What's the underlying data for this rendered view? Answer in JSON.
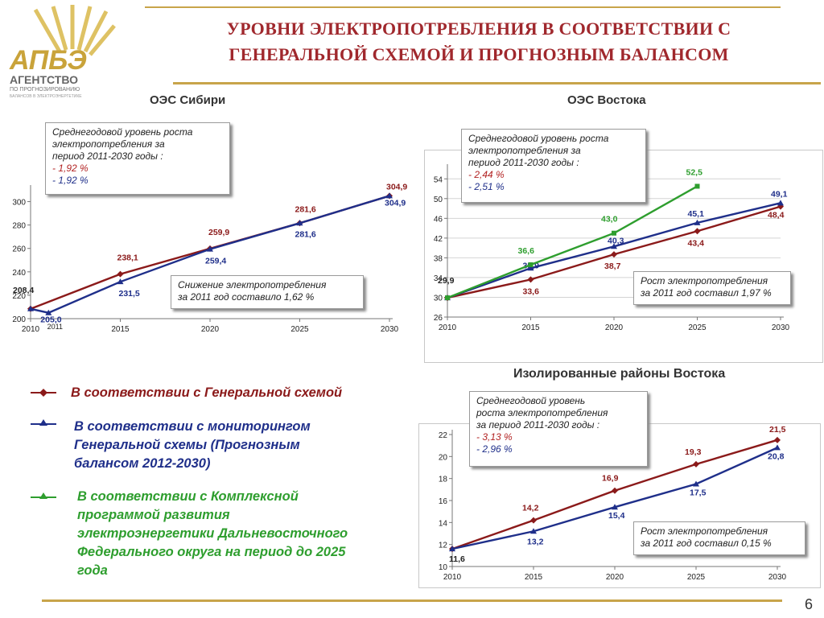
{
  "slide": {
    "title_line1": "УРОВНИ ЭЛЕКТРОПОТРЕБЛЕНИЯ В СООТВЕТСТВИИ С",
    "title_line2": "ГЕНЕРАЛЬНОЙ СХЕМОЙ И ПРОГНОЗНЫМ БАЛАНСОМ",
    "page_number": "6",
    "accent_color": "#c8a44a",
    "title_color": "#a0282d"
  },
  "logo": {
    "name": "АПБЭ",
    "line1": "АГЕНТСТВО",
    "line2": "ПО ПРОГНОЗИРОВАНИЮ",
    "line3": "БАЛАНСОВ В ЭЛЕКТРОЭНЕРГЕТИКЕ"
  },
  "sections": {
    "siberia": "ОЭС Сибири",
    "east": "ОЭС Востока",
    "isolated": "Изолированные районы Востока"
  },
  "annotations": {
    "siberia_growth": {
      "line1": "Среднегодовой уровень роста",
      "line2": "электропотребления за",
      "line3": "период  2011-2030  годы :",
      "red": "- 1,92 %",
      "blue": "- 1,92 %"
    },
    "siberia_drop": {
      "line1": "Снижение электропотребления",
      "line2": "за 2011  год составило 1,62 %"
    },
    "east_growth": {
      "line1": "Среднегодовой уровень роста",
      "line2": "электропотребления за",
      "line3": "период  2011-2030  годы :",
      "red": "- 2,44 %",
      "blue": "- 2,51 %"
    },
    "east_rise": {
      "line1": "Рост электропотребления",
      "line2": "за 2011  год составил  1,97 %"
    },
    "iso_growth": {
      "line1": "Среднегодовой уровень",
      "line2": "роста электропотребления",
      "line3": "за период  2011-2030  годы :",
      "red": "- 3,13 %",
      "blue": "- 2,96 %"
    },
    "iso_rise": {
      "line1": "Рост электропотребления",
      "line2": "за 2011  год составил 0,15 %"
    }
  },
  "legend": {
    "general_scheme": "В соответствии с Генеральной схемой",
    "monitoring_line1": "В соответствии с мониторингом",
    "monitoring_line2": "Генеральной схемы (Прогнозным",
    "monitoring_line3": "балансом 2012-2030)",
    "program_line1": "В соответствии с Комплексной",
    "program_line2": "программой развития",
    "program_line3": "электроэнергетики Дальневосточного",
    "program_line4": "Федерального округа на период до 2025",
    "program_line5": "года",
    "colors": {
      "general": "#8b1a1a",
      "monitoring": "#1f2f8a",
      "program": "#2e9e2e"
    }
  },
  "chart_data": [
    {
      "id": "siberia",
      "type": "line",
      "ylim": [
        200,
        310
      ],
      "yticks": [
        "200",
        "220",
        "240",
        "260",
        "280",
        "300"
      ],
      "xticks": [
        "2010",
        "2015",
        "2020",
        "2025",
        "2030"
      ],
      "extra_xtick": "2011",
      "grid": false,
      "series": [
        {
          "key": "general",
          "color": "#8b1a1a",
          "marker": "diamond",
          "points": [
            [
              2010,
              208.4
            ],
            [
              2015,
              238.1
            ],
            [
              2020,
              259.9
            ],
            [
              2025,
              281.6
            ],
            [
              2030,
              304.9
            ]
          ],
          "labels": [
            "208,4",
            "238,1",
            "259,9",
            "281,6",
            "304,9"
          ]
        },
        {
          "key": "monitoring",
          "color": "#1f2f8a",
          "marker": "triangle",
          "points": [
            [
              2010,
              208.4
            ],
            [
              2011,
              205.0
            ],
            [
              2015,
              231.5
            ],
            [
              2020,
              259.4
            ],
            [
              2025,
              281.6
            ],
            [
              2030,
              304.9
            ]
          ],
          "labels": [
            "",
            "205,0",
            "231,5",
            "259,4",
            "281,6",
            "304,9"
          ]
        }
      ]
    },
    {
      "id": "east",
      "type": "line",
      "ylim": [
        26,
        56
      ],
      "yticks": [
        "26",
        "30",
        "34",
        "38",
        "42",
        "46",
        "50",
        "54"
      ],
      "xticks": [
        "2010",
        "2015",
        "2020",
        "2025",
        "2030"
      ],
      "grid": true,
      "series": [
        {
          "key": "general",
          "color": "#8b1a1a",
          "marker": "diamond",
          "points": [
            [
              2010,
              29.9
            ],
            [
              2015,
              33.6
            ],
            [
              2020,
              38.7
            ],
            [
              2025,
              43.4
            ],
            [
              2030,
              48.4
            ]
          ],
          "labels": [
            "29,9",
            "33,6",
            "38,7",
            "43,4",
            "48,4"
          ]
        },
        {
          "key": "monitoring",
          "color": "#1f2f8a",
          "marker": "triangle",
          "points": [
            [
              2010,
              29.9
            ],
            [
              2015,
              35.9
            ],
            [
              2020,
              40.3
            ],
            [
              2025,
              45.1
            ],
            [
              2030,
              49.1
            ]
          ],
          "labels": [
            "",
            "35,9",
            "40,3",
            "45,1",
            "49,1"
          ]
        },
        {
          "key": "program",
          "color": "#2e9e2e",
          "marker": "square",
          "points": [
            [
              2010,
              29.9
            ],
            [
              2015,
              36.6
            ],
            [
              2020,
              43.0
            ],
            [
              2025,
              52.5
            ]
          ],
          "labels": [
            "",
            "36,6",
            "43,0",
            "52,5"
          ]
        }
      ]
    },
    {
      "id": "isolated",
      "type": "line",
      "ylim": [
        10,
        22
      ],
      "yticks": [
        "10",
        "12",
        "14",
        "16",
        "18",
        "20",
        "22"
      ],
      "xticks": [
        "2010",
        "2015",
        "2020",
        "2025",
        "2030"
      ],
      "grid": false,
      "series": [
        {
          "key": "general",
          "color": "#8b1a1a",
          "marker": "diamond",
          "points": [
            [
              2010,
              11.6
            ],
            [
              2015,
              14.2
            ],
            [
              2020,
              16.9
            ],
            [
              2025,
              19.3
            ],
            [
              2030,
              21.5
            ]
          ],
          "labels": [
            "",
            "14,2",
            "16,9",
            "19,3",
            "21,5"
          ]
        },
        {
          "key": "monitoring",
          "color": "#1f2f8a",
          "marker": "triangle",
          "points": [
            [
              2010,
              11.6
            ],
            [
              2015,
              13.2
            ],
            [
              2020,
              15.4
            ],
            [
              2025,
              17.5
            ],
            [
              2030,
              20.8
            ]
          ],
          "labels": [
            "11,6",
            "13,2",
            "15,4",
            "17,5",
            "20,8"
          ]
        }
      ]
    }
  ]
}
